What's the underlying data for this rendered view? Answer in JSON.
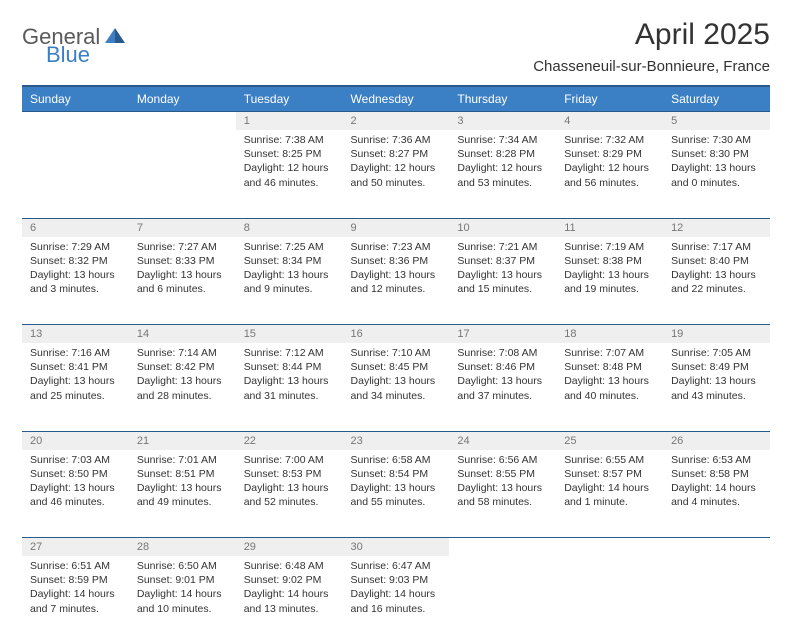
{
  "brand": {
    "part1": "General",
    "part2": "Blue"
  },
  "title": "April 2025",
  "location": "Chasseneuil-sur-Bonnieure, France",
  "colors": {
    "header_bg": "#3b7fc4",
    "header_border": "#2a5a8a",
    "daynum_bg": "#efefef",
    "daynum_text": "#777777",
    "text": "#333333",
    "logo_gray": "#5a5a5a",
    "logo_blue": "#3b7fc4",
    "background": "#ffffff"
  },
  "weekdays": [
    "Sunday",
    "Monday",
    "Tuesday",
    "Wednesday",
    "Thursday",
    "Friday",
    "Saturday"
  ],
  "weeks": [
    [
      null,
      null,
      {
        "n": "1",
        "sr": "7:38 AM",
        "ss": "8:25 PM",
        "dl": "12 hours and 46 minutes."
      },
      {
        "n": "2",
        "sr": "7:36 AM",
        "ss": "8:27 PM",
        "dl": "12 hours and 50 minutes."
      },
      {
        "n": "3",
        "sr": "7:34 AM",
        "ss": "8:28 PM",
        "dl": "12 hours and 53 minutes."
      },
      {
        "n": "4",
        "sr": "7:32 AM",
        "ss": "8:29 PM",
        "dl": "12 hours and 56 minutes."
      },
      {
        "n": "5",
        "sr": "7:30 AM",
        "ss": "8:30 PM",
        "dl": "13 hours and 0 minutes."
      }
    ],
    [
      {
        "n": "6",
        "sr": "7:29 AM",
        "ss": "8:32 PM",
        "dl": "13 hours and 3 minutes."
      },
      {
        "n": "7",
        "sr": "7:27 AM",
        "ss": "8:33 PM",
        "dl": "13 hours and 6 minutes."
      },
      {
        "n": "8",
        "sr": "7:25 AM",
        "ss": "8:34 PM",
        "dl": "13 hours and 9 minutes."
      },
      {
        "n": "9",
        "sr": "7:23 AM",
        "ss": "8:36 PM",
        "dl": "13 hours and 12 minutes."
      },
      {
        "n": "10",
        "sr": "7:21 AM",
        "ss": "8:37 PM",
        "dl": "13 hours and 15 minutes."
      },
      {
        "n": "11",
        "sr": "7:19 AM",
        "ss": "8:38 PM",
        "dl": "13 hours and 19 minutes."
      },
      {
        "n": "12",
        "sr": "7:17 AM",
        "ss": "8:40 PM",
        "dl": "13 hours and 22 minutes."
      }
    ],
    [
      {
        "n": "13",
        "sr": "7:16 AM",
        "ss": "8:41 PM",
        "dl": "13 hours and 25 minutes."
      },
      {
        "n": "14",
        "sr": "7:14 AM",
        "ss": "8:42 PM",
        "dl": "13 hours and 28 minutes."
      },
      {
        "n": "15",
        "sr": "7:12 AM",
        "ss": "8:44 PM",
        "dl": "13 hours and 31 minutes."
      },
      {
        "n": "16",
        "sr": "7:10 AM",
        "ss": "8:45 PM",
        "dl": "13 hours and 34 minutes."
      },
      {
        "n": "17",
        "sr": "7:08 AM",
        "ss": "8:46 PM",
        "dl": "13 hours and 37 minutes."
      },
      {
        "n": "18",
        "sr": "7:07 AM",
        "ss": "8:48 PM",
        "dl": "13 hours and 40 minutes."
      },
      {
        "n": "19",
        "sr": "7:05 AM",
        "ss": "8:49 PM",
        "dl": "13 hours and 43 minutes."
      }
    ],
    [
      {
        "n": "20",
        "sr": "7:03 AM",
        "ss": "8:50 PM",
        "dl": "13 hours and 46 minutes."
      },
      {
        "n": "21",
        "sr": "7:01 AM",
        "ss": "8:51 PM",
        "dl": "13 hours and 49 minutes."
      },
      {
        "n": "22",
        "sr": "7:00 AM",
        "ss": "8:53 PM",
        "dl": "13 hours and 52 minutes."
      },
      {
        "n": "23",
        "sr": "6:58 AM",
        "ss": "8:54 PM",
        "dl": "13 hours and 55 minutes."
      },
      {
        "n": "24",
        "sr": "6:56 AM",
        "ss": "8:55 PM",
        "dl": "13 hours and 58 minutes."
      },
      {
        "n": "25",
        "sr": "6:55 AM",
        "ss": "8:57 PM",
        "dl": "14 hours and 1 minute."
      },
      {
        "n": "26",
        "sr": "6:53 AM",
        "ss": "8:58 PM",
        "dl": "14 hours and 4 minutes."
      }
    ],
    [
      {
        "n": "27",
        "sr": "6:51 AM",
        "ss": "8:59 PM",
        "dl": "14 hours and 7 minutes."
      },
      {
        "n": "28",
        "sr": "6:50 AM",
        "ss": "9:01 PM",
        "dl": "14 hours and 10 minutes."
      },
      {
        "n": "29",
        "sr": "6:48 AM",
        "ss": "9:02 PM",
        "dl": "14 hours and 13 minutes."
      },
      {
        "n": "30",
        "sr": "6:47 AM",
        "ss": "9:03 PM",
        "dl": "14 hours and 16 minutes."
      },
      null,
      null,
      null
    ]
  ],
  "labels": {
    "sunrise": "Sunrise:",
    "sunset": "Sunset:",
    "daylight": "Daylight:"
  }
}
